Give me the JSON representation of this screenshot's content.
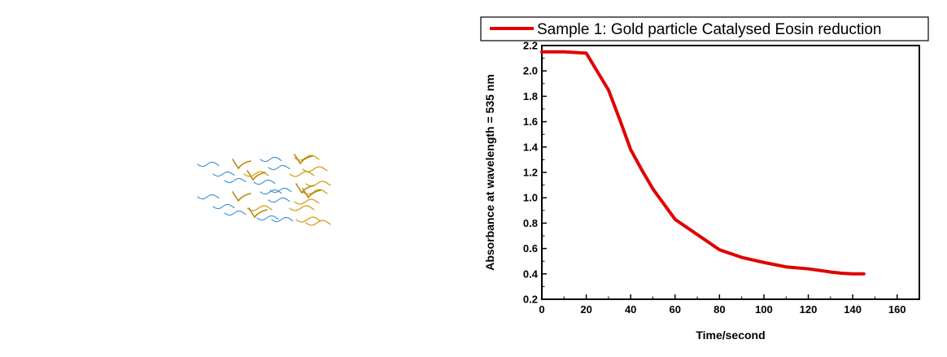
{
  "chart_data": {
    "type": "line",
    "title": "",
    "xlabel": "Time/second",
    "ylabel": "Absorbance at wavelength = 535 nm",
    "xlim": [
      0,
      170
    ],
    "ylim": [
      0.2,
      2.2
    ],
    "xticks": [
      "0",
      "20",
      "40",
      "60",
      "80",
      "100",
      "120",
      "140",
      "160"
    ],
    "yticks": [
      "0.2",
      "0.4",
      "0.6",
      "0.8",
      "1.0",
      "1.2",
      "1.4",
      "1.6",
      "1.8",
      "2.0",
      "2.2"
    ],
    "grid": false,
    "legend_position": "top",
    "series": [
      {
        "name": "Sample 1: Gold particle Catalysed Eosin reduction",
        "color": "#e00000",
        "x": [
          0,
          10,
          20,
          30,
          35,
          40,
          45,
          50,
          60,
          70,
          80,
          90,
          100,
          110,
          120,
          130,
          135,
          140,
          145
        ],
        "y": [
          2.15,
          2.15,
          2.14,
          1.85,
          1.62,
          1.38,
          1.22,
          1.07,
          0.83,
          0.71,
          0.59,
          0.53,
          0.49,
          0.455,
          0.44,
          0.415,
          0.405,
          0.4,
          0.4
        ]
      }
    ]
  },
  "illustration": {
    "icon": "wavy-lines-decoration",
    "colors": [
      "#3b8fd6",
      "#d4a017",
      "#b8860b"
    ]
  }
}
